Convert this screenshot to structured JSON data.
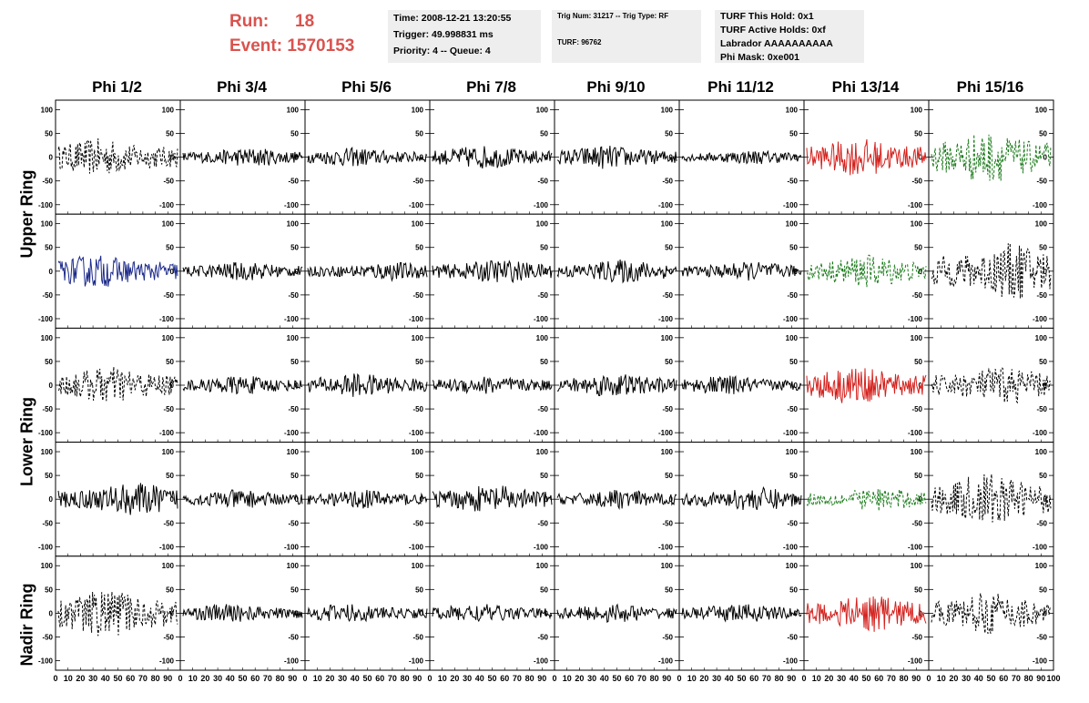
{
  "header": {
    "run_label": "Run:",
    "run_value": "18",
    "event_label": "Event:",
    "event_value": "1570153",
    "time": "Time: 2008-12-21 13:20:55",
    "trigger": "Trigger: 49.998831 ms",
    "priority": "Priority: 4 -- Queue: 4",
    "trig_num": "Trig Num: 31217 -- Trig Type: RF",
    "turf": "TURF: 96762",
    "turf_hold": "TURF This Hold: 0x1",
    "turf_active": "TURF Active Holds: 0xf",
    "labrador": "Labrador AAAAAAAAAA",
    "phi_mask": "Phi Mask: 0xe001"
  },
  "columns": [
    "Phi 1/2",
    "Phi 3/4",
    "Phi 5/6",
    "Phi 7/8",
    "Phi 9/10",
    "Phi 11/12",
    "Phi 13/14",
    "Phi 15/16"
  ],
  "rows": [
    {
      "label": "Upper Ring",
      "span": [
        0,
        1
      ]
    },
    {
      "label": "Lower Ring",
      "span": [
        2,
        3
      ]
    },
    {
      "label": "Nadir Ring",
      "span": [
        4,
        4
      ]
    }
  ],
  "axes": {
    "y_ticks": [
      "100",
      "50",
      "0",
      "-50",
      "-100"
    ],
    "x_ticks": [
      "0",
      "10",
      "20",
      "30",
      "40",
      "50",
      "60",
      "70",
      "80",
      "90",
      "100"
    ],
    "y_range": [
      -120,
      120
    ],
    "x_range": [
      0,
      100
    ]
  },
  "colors": {
    "default": "#000000",
    "red": "#d4221e",
    "green": "#1a7a1a",
    "blue": "#1c2a8a",
    "run_text": "#d9534f",
    "info_bg": "#eeeeee"
  },
  "panels": [
    [
      {
        "color": "default",
        "style": "dashed",
        "amplitude": 40
      },
      {
        "color": "default",
        "style": "solid",
        "amplitude": 20
      },
      {
        "color": "default",
        "style": "solid",
        "amplitude": 20
      },
      {
        "color": "default",
        "style": "solid",
        "amplitude": 25
      },
      {
        "color": "default",
        "style": "solid",
        "amplitude": 25
      },
      {
        "color": "default",
        "style": "solid",
        "amplitude": 15
      },
      {
        "color": "red",
        "style": "solid",
        "amplitude": 40
      },
      {
        "color": "green",
        "style": "dashed",
        "amplitude": 55
      }
    ],
    [
      {
        "color": "blue",
        "style": "solid",
        "amplitude": 35
      },
      {
        "color": "default",
        "style": "solid",
        "amplitude": 20
      },
      {
        "color": "default",
        "style": "solid",
        "amplitude": 20
      },
      {
        "color": "default",
        "style": "solid",
        "amplitude": 25
      },
      {
        "color": "default",
        "style": "solid",
        "amplitude": 25
      },
      {
        "color": "default",
        "style": "solid",
        "amplitude": 20
      },
      {
        "color": "green",
        "style": "dashed",
        "amplitude": 35
      },
      {
        "color": "default",
        "style": "dashed",
        "amplitude": 60
      }
    ],
    [
      {
        "color": "default",
        "style": "dashed",
        "amplitude": 40
      },
      {
        "color": "default",
        "style": "solid",
        "amplitude": 20
      },
      {
        "color": "default",
        "style": "solid",
        "amplitude": 25
      },
      {
        "color": "default",
        "style": "solid",
        "amplitude": 20
      },
      {
        "color": "default",
        "style": "solid",
        "amplitude": 25
      },
      {
        "color": "default",
        "style": "solid",
        "amplitude": 20
      },
      {
        "color": "red",
        "style": "solid",
        "amplitude": 40
      },
      {
        "color": "default",
        "style": "dashed",
        "amplitude": 40
      }
    ],
    [
      {
        "color": "default",
        "style": "solid",
        "amplitude": 35
      },
      {
        "color": "default",
        "style": "solid",
        "amplitude": 20
      },
      {
        "color": "default",
        "style": "solid",
        "amplitude": 20
      },
      {
        "color": "default",
        "style": "solid",
        "amplitude": 30
      },
      {
        "color": "default",
        "style": "solid",
        "amplitude": 20
      },
      {
        "color": "default",
        "style": "solid",
        "amplitude": 25
      },
      {
        "color": "green",
        "style": "dashed",
        "amplitude": 25
      },
      {
        "color": "default",
        "style": "dashed",
        "amplitude": 55
      }
    ],
    [
      {
        "color": "default",
        "style": "dashed",
        "amplitude": 50
      },
      {
        "color": "default",
        "style": "solid",
        "amplitude": 20
      },
      {
        "color": "default",
        "style": "solid",
        "amplitude": 20
      },
      {
        "color": "default",
        "style": "solid",
        "amplitude": 20
      },
      {
        "color": "default",
        "style": "solid",
        "amplitude": 20
      },
      {
        "color": "default",
        "style": "solid",
        "amplitude": 20
      },
      {
        "color": "red",
        "style": "solid",
        "amplitude": 40
      },
      {
        "color": "default",
        "style": "dashed",
        "amplitude": 45
      }
    ]
  ]
}
